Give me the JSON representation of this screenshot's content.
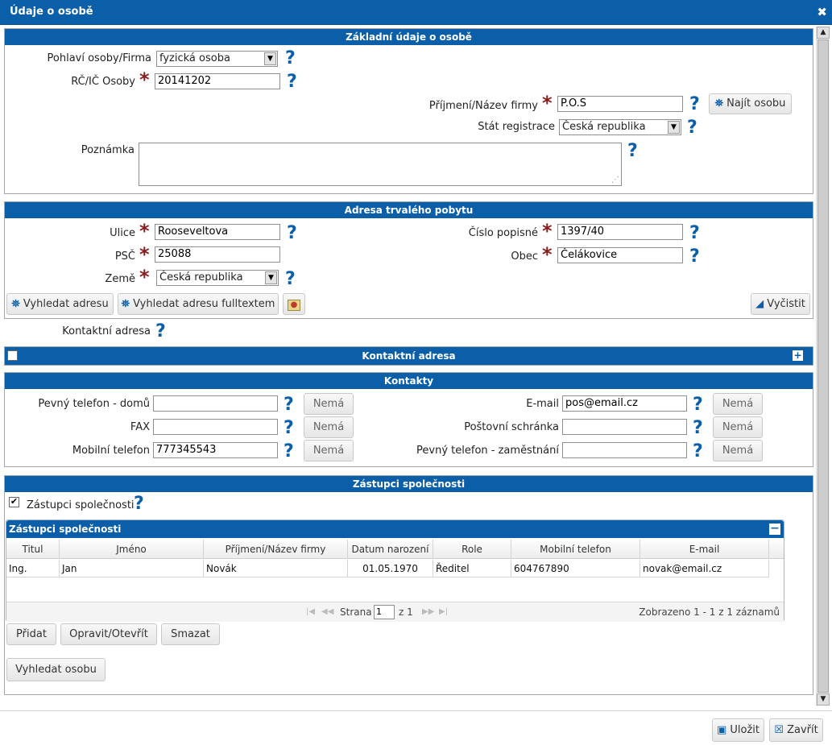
{
  "dialog": {
    "title": "Údaje o osobě"
  },
  "basic": {
    "header": "Základní údaje o osobě",
    "gender_label": "Pohlaví osoby/Firma",
    "gender_value": "fyzická osoba",
    "rc_label": "RČ/IČ Osoby",
    "rc_value": "20141202",
    "surname_label": "Příjmení/Název firmy",
    "surname_value": "P.O.S",
    "find_person": "Najít osobu",
    "country_label": "Stát registrace",
    "country_value": "Česká republika",
    "note_label": "Poznámka",
    "note_value": ""
  },
  "address": {
    "header": "Adresa trvalého pobytu",
    "street_label": "Ulice",
    "street_value": "Rooseveltova",
    "number_label": "Číslo popisné",
    "number_value": "1397/40",
    "zip_label": "PSČ",
    "zip_value": "25088",
    "city_label": "Obec",
    "city_value": "Čelákovice",
    "land_label": "Země",
    "land_value": "Česká republika",
    "search_address": "Vyhledat adresu",
    "search_fulltext": "Vyhledat adresu fulltextem",
    "clear": "Vyčistit"
  },
  "contact_address": {
    "label": "Kontaktní adresa",
    "header": "Kontaktní adresa"
  },
  "contacts": {
    "header": "Kontakty",
    "none_label": "Nemá",
    "home_phone_label": "Pevný telefon - domů",
    "home_phone_value": "",
    "fax_label": "FAX",
    "fax_value": "",
    "mobile_label": "Mobilní telefon",
    "mobile_value": "777345543",
    "email_label": "E-mail",
    "email_value": "pos@email.cz",
    "pobox_label": "Poštovní schránka",
    "pobox_value": "",
    "work_phone_label": "Pevný telefon - zaměstnání",
    "work_phone_value": ""
  },
  "representatives": {
    "header": "Zástupci společnosti",
    "checkbox_label": "Zástupci společnosti",
    "grid_title": "Zástupci společnosti",
    "columns": [
      "Titul",
      "Jméno",
      "Příjmení/Název firmy",
      "Datum narození",
      "Role",
      "Mobilní telefon",
      "E-mail"
    ],
    "rows": [
      [
        "Ing.",
        "Jan",
        "Novák",
        "01.05.1970",
        "Ředitel",
        "604767890",
        "novak@email.cz"
      ]
    ],
    "pager_page_label": "Strana",
    "pager_page_value": "1",
    "pager_of": "z 1",
    "pager_summary": "Zobrazeno 1 - 1 z 1 záznamů",
    "add": "Přidat",
    "edit": "Opravit/Otevřít",
    "delete": "Smazat",
    "search_person": "Vyhledat osobu"
  },
  "footer": {
    "save": "Uložit",
    "close": "Zavřít"
  },
  "colors": {
    "accent": "#0b5ea8",
    "required": "#8a1c1c"
  }
}
